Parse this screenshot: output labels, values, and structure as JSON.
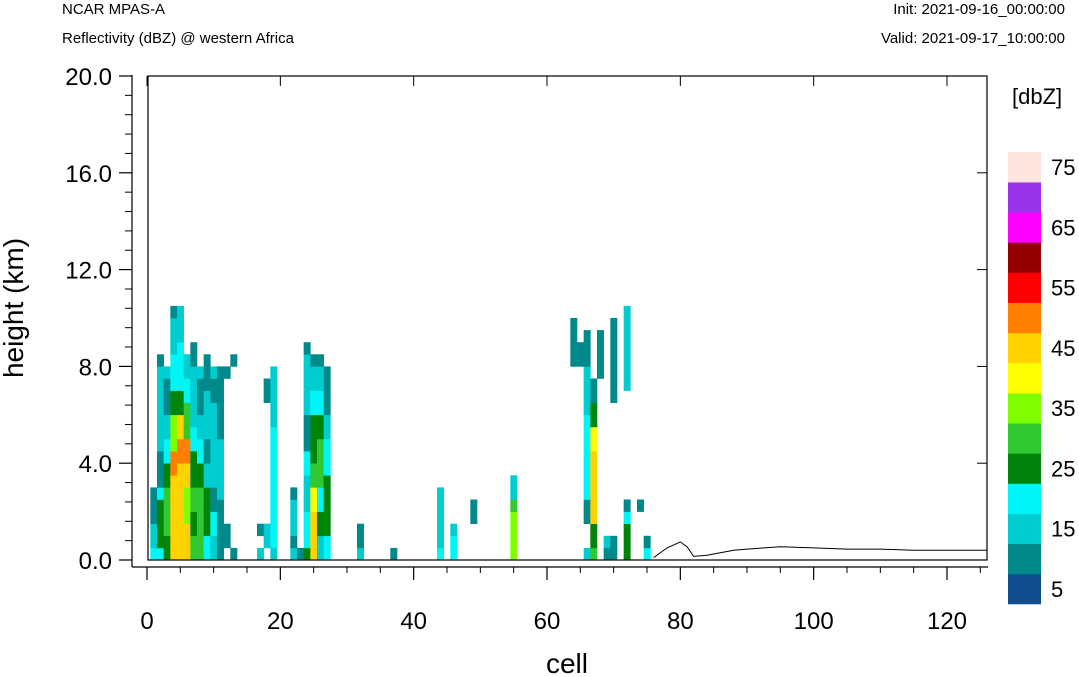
{
  "header": {
    "model": "NCAR MPAS-A",
    "field": "Reflectivity (dBZ) @ western Africa",
    "init": "Init: 2021-09-16_00:00:00",
    "valid": "Valid: 2021-09-17_10:00:00"
  },
  "chart_data": {
    "type": "heatmap",
    "title": "Reflectivity (dBZ) @ western Africa",
    "xlabel": "cell",
    "ylabel": "height (km)",
    "xlim": [
      0,
      126
    ],
    "ylim": [
      0,
      20
    ],
    "x_ticks": [
      "0",
      "20",
      "40",
      "60",
      "80",
      "100",
      "120"
    ],
    "y_ticks": [
      "0.0",
      "4.0",
      "8.0",
      "12.0",
      "16.0",
      "20.0"
    ],
    "colorbar": {
      "units": "[dbZ]",
      "labels": [
        "5",
        "15",
        "25",
        "35",
        "45",
        "55",
        "65",
        "75"
      ],
      "colors": [
        "#0f4e8c",
        "#00898a",
        "#00cdd0",
        "#00f6f6",
        "#00850a",
        "#31c831",
        "#80ff00",
        "#ffff00",
        "#ffd200",
        "#ff8000",
        "#ff0000",
        "#960000",
        "#ff00ff",
        "#9933ea",
        "#ffe4dd"
      ]
    },
    "cell_height_km": 0.5,
    "columns": [
      {
        "x": 1,
        "cells": [
          [
            0,
            0.5,
            3
          ],
          [
            0.5,
            1.5,
            2
          ],
          [
            1.5,
            3,
            1
          ]
        ]
      },
      {
        "x": 2,
        "cells": [
          [
            0,
            0.5,
            3
          ],
          [
            0.5,
            2.5,
            4
          ],
          [
            2.5,
            3,
            3
          ],
          [
            3,
            4.5,
            1
          ],
          [
            4.5,
            8,
            2
          ],
          [
            8,
            8.5,
            1
          ]
        ]
      },
      {
        "x": 3,
        "cells": [
          [
            0,
            1,
            4
          ],
          [
            1,
            2,
            5
          ],
          [
            2,
            3,
            5
          ],
          [
            3,
            4,
            4
          ],
          [
            4,
            5,
            3
          ],
          [
            5,
            6,
            2
          ],
          [
            6,
            7.5,
            1
          ],
          [
            7.5,
            8,
            2
          ]
        ]
      },
      {
        "x": 4,
        "cells": [
          [
            0,
            2,
            8
          ],
          [
            2,
            3.5,
            8
          ],
          [
            3.5,
            4.5,
            9
          ],
          [
            4.5,
            6,
            6
          ],
          [
            6,
            7,
            4
          ],
          [
            7,
            8.5,
            3
          ],
          [
            8.5,
            10,
            2
          ],
          [
            10,
            10.5,
            1
          ]
        ]
      },
      {
        "x": 5,
        "cells": [
          [
            0,
            2,
            8
          ],
          [
            2,
            4,
            8
          ],
          [
            4,
            5,
            9
          ],
          [
            5,
            6,
            8
          ],
          [
            6,
            7,
            4
          ],
          [
            7,
            8,
            3
          ],
          [
            8,
            9,
            3
          ],
          [
            9,
            10.5,
            2
          ]
        ]
      },
      {
        "x": 6,
        "cells": [
          [
            0,
            1.5,
            8
          ],
          [
            1.5,
            3,
            6
          ],
          [
            3,
            4,
            8
          ],
          [
            4,
            5,
            9
          ],
          [
            5,
            6.5,
            5
          ],
          [
            6.5,
            7.5,
            3
          ],
          [
            7.5,
            8.5,
            2
          ]
        ]
      },
      {
        "x": 7,
        "cells": [
          [
            0,
            1,
            5
          ],
          [
            1,
            2,
            4
          ],
          [
            2,
            3,
            5
          ],
          [
            3,
            4.5,
            4
          ],
          [
            4.5,
            5.5,
            3
          ],
          [
            5.5,
            6.5,
            2
          ],
          [
            6.5,
            8,
            2
          ],
          [
            8,
            9,
            1
          ]
        ]
      },
      {
        "x": 8,
        "cells": [
          [
            0,
            1.5,
            5
          ],
          [
            1.5,
            3,
            5
          ],
          [
            3,
            4,
            4
          ],
          [
            4,
            5,
            3
          ],
          [
            5,
            6,
            2
          ],
          [
            6,
            7.5,
            1
          ],
          [
            7.5,
            8,
            2
          ]
        ]
      },
      {
        "x": 9,
        "cells": [
          [
            0,
            1,
            3
          ],
          [
            1,
            2,
            4
          ],
          [
            2,
            3,
            4
          ],
          [
            3,
            4,
            2
          ],
          [
            4,
            5,
            1
          ],
          [
            5,
            6,
            2
          ],
          [
            6,
            7,
            2
          ],
          [
            7,
            8.5,
            1
          ]
        ]
      },
      {
        "x": 10,
        "cells": [
          [
            0,
            1,
            2
          ],
          [
            1,
            2,
            3
          ],
          [
            2,
            3,
            1
          ],
          [
            3,
            3.5,
            2
          ],
          [
            3.5,
            5,
            2
          ],
          [
            5,
            6.5,
            2
          ],
          [
            6.5,
            7.5,
            1
          ],
          [
            7.5,
            8,
            2
          ]
        ]
      },
      {
        "x": 11,
        "cells": [
          [
            0,
            1,
            1
          ],
          [
            1,
            2.5,
            1
          ],
          [
            2.5,
            4,
            2
          ],
          [
            4,
            5,
            2
          ],
          [
            5,
            6.5,
            1
          ],
          [
            6.5,
            7.5,
            1
          ],
          [
            7.5,
            8,
            1
          ]
        ]
      },
      {
        "x": 12,
        "cells": [
          [
            0.5,
            1.5,
            1
          ],
          [
            7.5,
            8,
            1
          ]
        ]
      },
      {
        "x": 13,
        "cells": [
          [
            0,
            0.5,
            1
          ],
          [
            8,
            8.5,
            1
          ]
        ]
      },
      {
        "x": 17,
        "cells": [
          [
            0,
            0.5,
            2
          ],
          [
            1,
            1.5,
            1
          ]
        ]
      },
      {
        "x": 18,
        "cells": [
          [
            0.5,
            1.5,
            2
          ],
          [
            6.5,
            7.5,
            1
          ]
        ]
      },
      {
        "x": 19,
        "cells": [
          [
            0,
            0.5,
            2
          ],
          [
            0.5,
            4.5,
            3
          ],
          [
            4.5,
            5.5,
            3
          ],
          [
            5.5,
            7.5,
            2
          ],
          [
            7.5,
            8,
            2
          ]
        ]
      },
      {
        "x": 22,
        "cells": [
          [
            0,
            0.5,
            2
          ],
          [
            0.5,
            1,
            1
          ],
          [
            1,
            2.5,
            2
          ],
          [
            2.5,
            3,
            1
          ]
        ]
      },
      {
        "x": 23,
        "cells": [
          [
            0,
            0.5,
            1
          ]
        ]
      },
      {
        "x": 24,
        "cells": [
          [
            0,
            0.5,
            4
          ],
          [
            0.5,
            2,
            3
          ],
          [
            2,
            3.5,
            2
          ],
          [
            3.5,
            4.5,
            3
          ],
          [
            4.5,
            6,
            1
          ],
          [
            6,
            7,
            2
          ],
          [
            7,
            8.5,
            2
          ],
          [
            8.5,
            9,
            1
          ]
        ]
      },
      {
        "x": 25,
        "cells": [
          [
            0,
            2,
            8
          ],
          [
            2,
            3,
            7
          ],
          [
            3,
            4,
            5
          ],
          [
            4,
            5,
            4
          ],
          [
            5,
            6,
            4
          ],
          [
            6,
            7,
            3
          ],
          [
            7,
            8,
            2
          ],
          [
            8,
            8.5,
            1
          ]
        ]
      },
      {
        "x": 26,
        "cells": [
          [
            0,
            1,
            2
          ],
          [
            1,
            2,
            4
          ],
          [
            2,
            3,
            3
          ],
          [
            3,
            4,
            5
          ],
          [
            4,
            5,
            5
          ],
          [
            5,
            6,
            4
          ],
          [
            6,
            7,
            3
          ],
          [
            7,
            8,
            2
          ],
          [
            8,
            8.5,
            1
          ]
        ]
      },
      {
        "x": 27,
        "cells": [
          [
            0,
            1,
            3
          ],
          [
            1,
            2,
            4
          ],
          [
            2,
            3.5,
            4
          ],
          [
            3.5,
            5,
            3
          ],
          [
            5,
            6,
            2
          ],
          [
            6,
            7,
            1
          ],
          [
            7,
            8,
            1
          ]
        ]
      },
      {
        "x": 32,
        "cells": [
          [
            0,
            0.5,
            2
          ],
          [
            0.5,
            1.5,
            1
          ]
        ]
      },
      {
        "x": 37,
        "cells": [
          [
            0,
            0.5,
            1
          ]
        ]
      },
      {
        "x": 44,
        "cells": [
          [
            0,
            0.5,
            3
          ],
          [
            0.5,
            3,
            2
          ]
        ]
      },
      {
        "x": 46,
        "cells": [
          [
            0,
            1,
            3
          ],
          [
            1,
            1.5,
            2
          ]
        ]
      },
      {
        "x": 49,
        "cells": [
          [
            1.5,
            2.5,
            1
          ]
        ]
      },
      {
        "x": 55,
        "cells": [
          [
            0,
            2,
            6
          ],
          [
            2,
            2.5,
            5
          ],
          [
            2.5,
            3,
            2
          ],
          [
            3,
            3.5,
            2
          ]
        ]
      },
      {
        "x": 64,
        "cells": [
          [
            8,
            10,
            1
          ]
        ]
      },
      {
        "x": 65,
        "cells": [
          [
            8,
            9,
            1
          ]
        ]
      },
      {
        "x": 66,
        "cells": [
          [
            0,
            0.5,
            2
          ],
          [
            1.5,
            2.5,
            1
          ],
          [
            2.5,
            6,
            3
          ],
          [
            6,
            8,
            2
          ],
          [
            8,
            9.5,
            1
          ]
        ]
      },
      {
        "x": 67,
        "cells": [
          [
            0,
            0.5,
            5
          ],
          [
            0.5,
            1.5,
            4
          ],
          [
            1.5,
            3,
            8
          ],
          [
            3,
            4.5,
            8
          ],
          [
            4.5,
            5.5,
            7
          ],
          [
            5.5,
            6.5,
            4
          ],
          [
            6.5,
            7.5,
            1
          ]
        ]
      },
      {
        "x": 68,
        "cells": [
          [
            7.5,
            9.5,
            1
          ]
        ]
      },
      {
        "x": 69,
        "cells": [
          [
            0,
            0.5,
            1
          ],
          [
            0.5,
            1,
            2
          ]
        ]
      },
      {
        "x": 70,
        "cells": [
          [
            0,
            1,
            1
          ],
          [
            6.5,
            10,
            1
          ]
        ]
      },
      {
        "x": 72,
        "cells": [
          [
            0,
            1.5,
            4
          ],
          [
            1.5,
            2,
            3
          ],
          [
            2,
            2.5,
            1
          ],
          [
            7,
            10.5,
            2
          ]
        ]
      },
      {
        "x": 74,
        "cells": [
          [
            2,
            2.5,
            1
          ]
        ]
      },
      {
        "x": 75,
        "cells": [
          [
            0,
            0.5,
            3
          ],
          [
            0.5,
            1,
            1
          ]
        ]
      }
    ],
    "terrain_line": {
      "x": [
        76,
        78,
        80,
        81,
        82,
        84,
        86,
        88,
        90,
        95,
        100,
        105,
        110,
        115,
        120,
        126
      ],
      "y": [
        0.1,
        0.5,
        0.75,
        0.55,
        0.15,
        0.2,
        0.3,
        0.4,
        0.45,
        0.55,
        0.5,
        0.45,
        0.45,
        0.4,
        0.4,
        0.4
      ]
    }
  }
}
